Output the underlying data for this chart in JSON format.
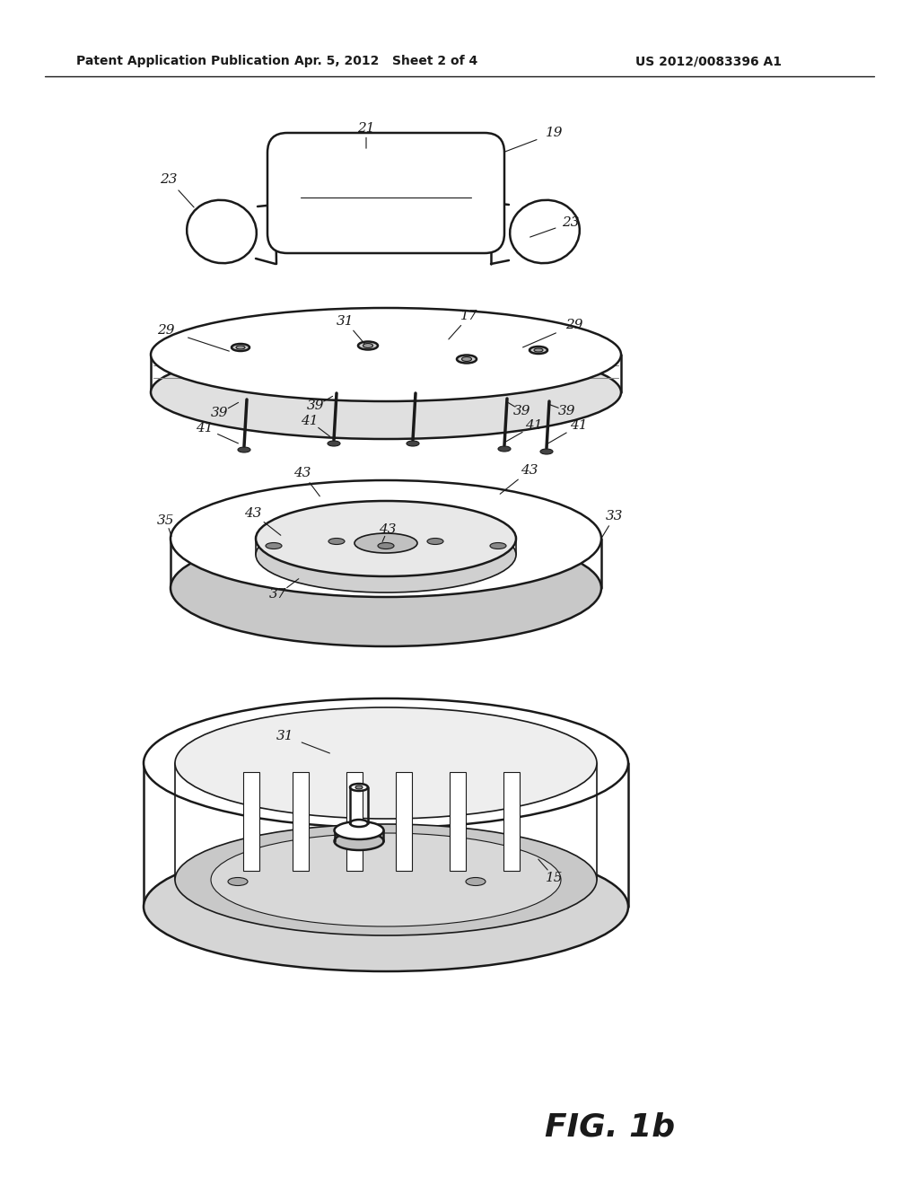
{
  "bg_color": "#ffffff",
  "line_color": "#1a1a1a",
  "header_left": "Patent Application Publication",
  "header_center": "Apr. 5, 2012   Sheet 2 of 4",
  "header_right": "US 2012/0083396 A1",
  "figure_label": "FIG. 1b"
}
